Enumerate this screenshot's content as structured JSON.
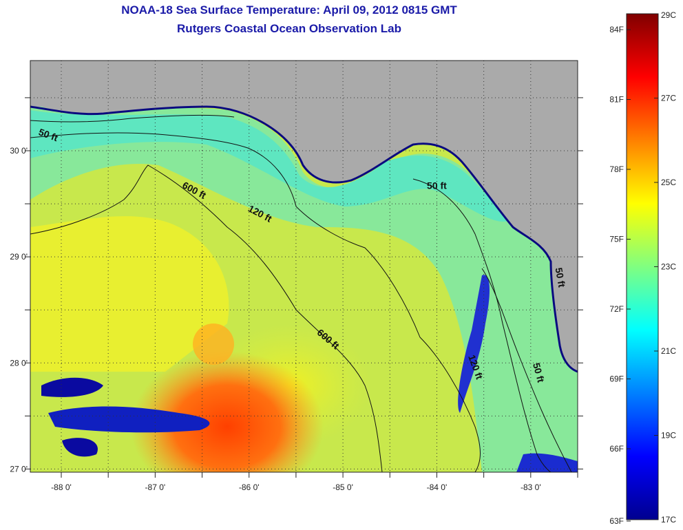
{
  "title": {
    "line1": "NOAA-18 Sea Surface Temperature:  April 09, 2012 0815 GMT",
    "line2": "Rutgers Coastal Ocean Observation Lab"
  },
  "map": {
    "lon_range": [
      -88.33,
      -82.5
    ],
    "lat_range": [
      26.97,
      30.85
    ],
    "lon_ticks": [
      {
        "value": -88,
        "label": "-88 0'"
      },
      {
        "value": -87,
        "label": "-87 0'"
      },
      {
        "value": -86,
        "label": "-86 0'"
      },
      {
        "value": -85,
        "label": "-85 0'"
      },
      {
        "value": -84,
        "label": "-84 0'"
      },
      {
        "value": -83,
        "label": "-83 0'"
      }
    ],
    "lat_ticks": [
      {
        "value": 27,
        "label": "27 0'"
      },
      {
        "value": 28,
        "label": "28 0'"
      },
      {
        "value": 29,
        "label": "29 0'"
      },
      {
        "value": 30,
        "label": "30 0'"
      }
    ],
    "grid": "dotted",
    "land_color": "#aaaaaa",
    "depth_labels": [
      {
        "text": "50 ft",
        "lon": -88.15,
        "lat": 30.12
      },
      {
        "text": "600 ft",
        "lon": -86.6,
        "lat": 29.6
      },
      {
        "text": "120 ft",
        "lon": -85.9,
        "lat": 29.38
      },
      {
        "text": "50 ft",
        "lon": -84.0,
        "lat": 29.64
      },
      {
        "text": "600 ft",
        "lon": -85.18,
        "lat": 28.2
      },
      {
        "text": "120 ft",
        "lon": -83.62,
        "lat": 27.95
      },
      {
        "text": "50 ft",
        "lon": -82.95,
        "lat": 27.9
      },
      {
        "text": "50 ft",
        "lon": -82.72,
        "lat": 28.8
      }
    ]
  },
  "colorbar": {
    "fahrenheit": [
      "84F",
      "81F",
      "78F",
      "75F",
      "72F",
      "69F",
      "66F",
      "63F"
    ],
    "celsius": [
      "29C",
      "27C",
      "25C",
      "23C",
      "21C",
      "19C",
      "17C"
    ],
    "colors": [
      "#00008f",
      "#0000ff",
      "#0080ff",
      "#00ffff",
      "#80ff80",
      "#ffff00",
      "#ff8000",
      "#ff0000",
      "#800000"
    ]
  }
}
